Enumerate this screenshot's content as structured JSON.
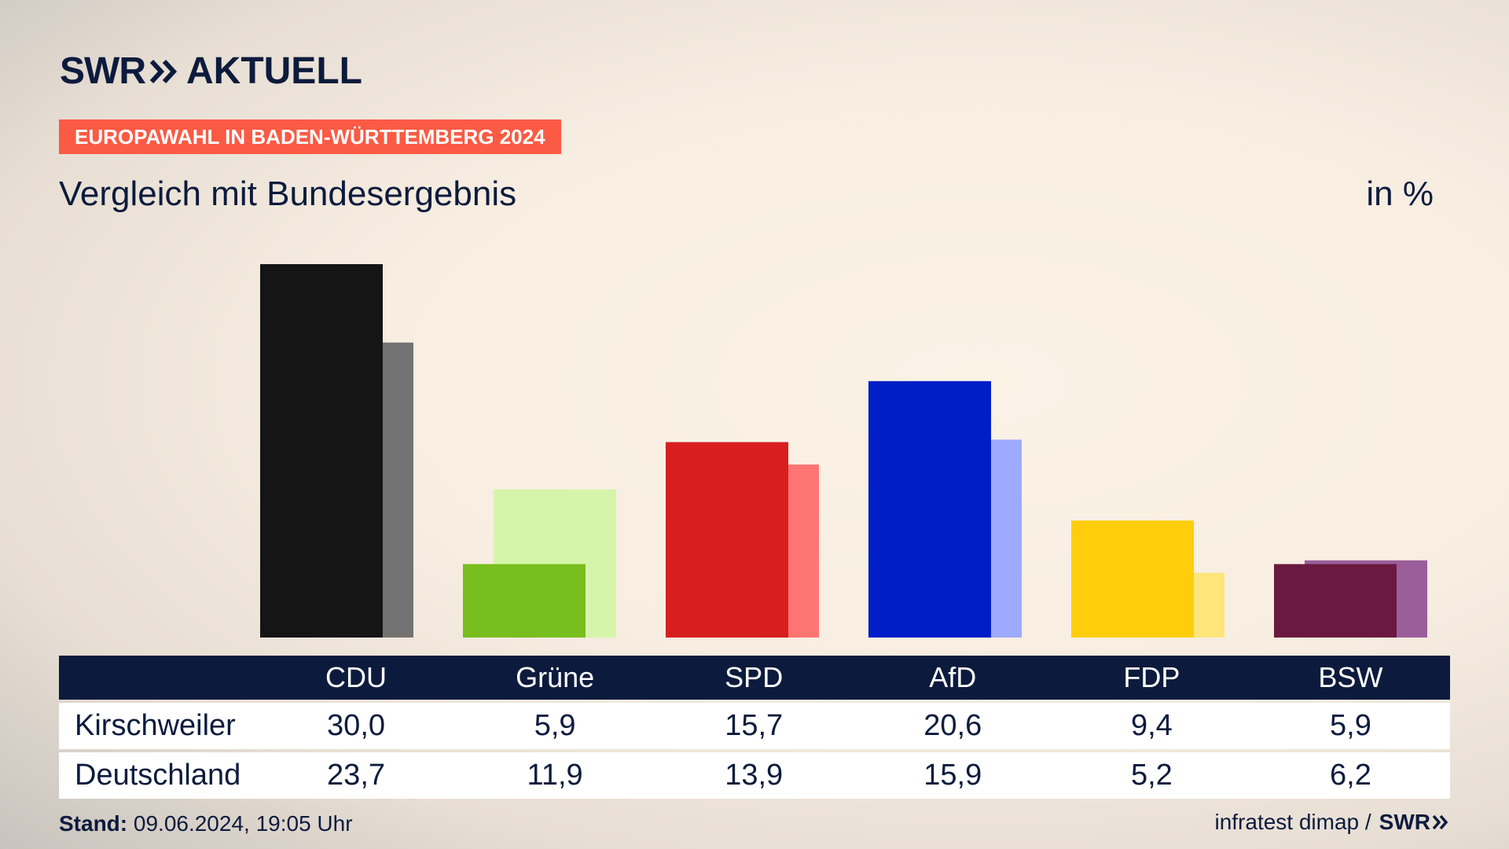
{
  "header": {
    "logo_swr": "SWR",
    "logo_aktuell": "AKTUELL",
    "banner": "EUROPAWAHL IN BADEN-WÜRTTEMBERG 2024",
    "subtitle": "Vergleich mit Bundesergebnis",
    "unit": "in %"
  },
  "colors": {
    "navy": "#0c1b3d",
    "banner": "#fb5a44"
  },
  "chart_data": {
    "type": "bar",
    "categories": [
      "CDU",
      "Grüne",
      "SPD",
      "AfD",
      "FDP",
      "BSW"
    ],
    "series": [
      {
        "name": "Kirschweiler",
        "values": [
          30.0,
          5.9,
          15.7,
          20.6,
          9.4,
          5.9
        ],
        "colors": [
          "#151515",
          "#78be1e",
          "#d81f1f",
          "#001ec8",
          "#ffcd0c",
          "#6a1a40"
        ]
      },
      {
        "name": "Deutschland",
        "values": [
          23.7,
          11.9,
          13.9,
          15.9,
          5.2,
          6.2
        ],
        "colors": [
          "#737373",
          "#d6f5aa",
          "#ff7573",
          "#9eaaff",
          "#ffe57a",
          "#9b5e9b"
        ]
      }
    ],
    "ylim": [
      0,
      30
    ]
  },
  "table": {
    "headers": [
      "CDU",
      "Grüne",
      "SPD",
      "AfD",
      "FDP",
      "BSW"
    ],
    "rows": [
      {
        "label": "Kirschweiler",
        "values": [
          "30,0",
          "5,9",
          "15,7",
          "20,6",
          "9,4",
          "5,9"
        ]
      },
      {
        "label": "Deutschland",
        "values": [
          "23,7",
          "11,9",
          "13,9",
          "15,9",
          "5,2",
          "6,2"
        ]
      }
    ]
  },
  "footer": {
    "stand_label": "Stand:",
    "stand_value": " 09.06.2024, 19:05 Uhr",
    "source": "infratest dimap /",
    "source_logo": "SWR"
  }
}
